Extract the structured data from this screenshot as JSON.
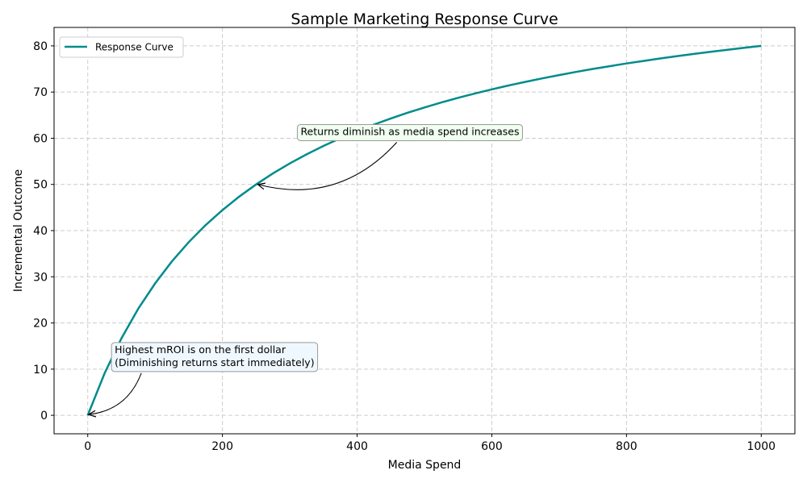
{
  "chart_data": {
    "type": "line",
    "title": "Sample Marketing Response Curve",
    "xlabel": "Media Spend",
    "ylabel": "Incremental Outcome",
    "xlim": [
      -50,
      1050
    ],
    "ylim": [
      -4,
      84
    ],
    "xticks": [
      0,
      200,
      400,
      600,
      800,
      1000
    ],
    "yticks": [
      0,
      10,
      20,
      30,
      40,
      50,
      60,
      70,
      80
    ],
    "grid": true,
    "grid_style": "dashed",
    "legend_position": "top-left",
    "series": [
      {
        "name": "Response Curve",
        "color": "#008b8b",
        "x": [
          0,
          25,
          50,
          75,
          100,
          125,
          150,
          175,
          200,
          225,
          250,
          275,
          300,
          325,
          350,
          375,
          400,
          425,
          450,
          475,
          500,
          525,
          550,
          575,
          600,
          625,
          650,
          675,
          700,
          725,
          750,
          775,
          800,
          825,
          850,
          875,
          900,
          925,
          950,
          975,
          1000
        ],
        "y": [
          0,
          9.09,
          16.67,
          23.08,
          28.57,
          33.33,
          37.5,
          41.18,
          44.44,
          47.37,
          50,
          52.38,
          54.55,
          56.52,
          58.33,
          60,
          61.54,
          62.96,
          64.29,
          65.52,
          66.67,
          67.74,
          68.75,
          69.7,
          70.59,
          71.43,
          72.22,
          72.97,
          73.68,
          74.36,
          75,
          75.61,
          76.19,
          76.74,
          77.27,
          77.78,
          78.26,
          78.72,
          79.17,
          79.59,
          80
        ]
      }
    ],
    "annotations": [
      {
        "lines": [
          "Highest mROI is on the first dollar",
          "(Diminishing returns start immediately)"
        ],
        "xy": [
          0,
          0
        ],
        "xytext": [
          40,
          10
        ],
        "box_color": "#f0f8ff"
      },
      {
        "lines": [
          "Returns diminish as media spend increases"
        ],
        "xy": [
          250,
          50
        ],
        "xytext": [
          316,
          60
        ],
        "box_color": "#f0fff0"
      }
    ]
  }
}
